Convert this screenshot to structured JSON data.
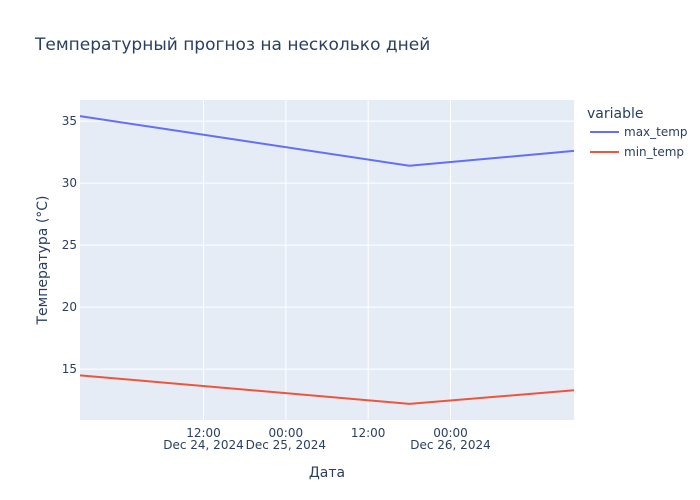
{
  "chart_data": {
    "type": "line",
    "title": "Температурный прогноз на несколько дней",
    "xlabel": "Дата",
    "ylabel": "Температура (°C)",
    "legend_title": "variable",
    "legend_placement": "top-right",
    "grid": true,
    "x": [
      "2024-12-23 18:00",
      "2024-12-25 18:00",
      "2024-12-26 18:00"
    ],
    "series": [
      {
        "name": "max_temp",
        "values": [
          35.4,
          31.4,
          32.6
        ],
        "color": "#636efa"
      },
      {
        "name": "min_temp",
        "values": [
          14.5,
          12.2,
          13.3
        ],
        "color": "#ef553b"
      }
    ],
    "xlim": [
      "2024-12-23 18:00",
      "2024-12-26 18:00"
    ],
    "ylim": [
      10.9,
      36.7
    ],
    "yticks": [
      15,
      20,
      25,
      30,
      35
    ],
    "xticks": [
      {
        "value": "2024-12-24 12:00",
        "line1": "12:00",
        "line2": "Dec 24, 2024"
      },
      {
        "value": "2024-12-25 00:00",
        "line1": "00:00",
        "line2": "Dec 25, 2024"
      },
      {
        "value": "2024-12-25 12:00",
        "line1": "12:00",
        "line2": ""
      },
      {
        "value": "2024-12-26 00:00",
        "line1": "00:00",
        "line2": "Dec 26, 2024"
      }
    ],
    "plot_bg": "#e5ecf6",
    "grid_color": "#ffffff"
  }
}
